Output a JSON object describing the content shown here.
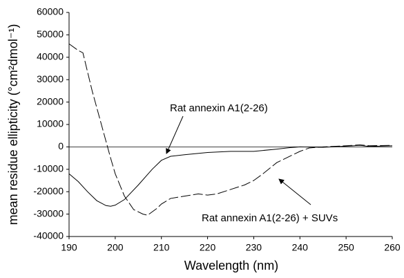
{
  "chart_data": {
    "type": "line",
    "x_label": "Wavelength (nm)",
    "y_label": "mean residue ellipticity (°cm²dmol⁻¹)",
    "xlim": [
      190,
      260
    ],
    "xticks": [
      190,
      200,
      210,
      220,
      230,
      240,
      250,
      260
    ],
    "ylim": [
      -40000,
      60000
    ],
    "yticks": [
      -40000,
      -30000,
      -20000,
      -10000,
      0,
      10000,
      20000,
      30000,
      40000,
      50000,
      60000
    ],
    "zero_line": true,
    "series": [
      {
        "name": "Rat annexin A1(2-26)",
        "color": "#000000",
        "dashed": false,
        "x": [
          190,
          192,
          194,
          196,
          198,
          199,
          200,
          202,
          205,
          208,
          210,
          212,
          215,
          220,
          225,
          230,
          235,
          238,
          240,
          245,
          250,
          253,
          255,
          260
        ],
        "values": [
          -12000,
          -15500,
          -20000,
          -24000,
          -26200,
          -26500,
          -26000,
          -23500,
          -17000,
          -10000,
          -6000,
          -4200,
          -3500,
          -2500,
          -2000,
          -2000,
          -1000,
          -300,
          0,
          -200,
          300,
          700,
          200,
          500
        ]
      },
      {
        "name": "Rat annexin A1(2-26) + SUVs",
        "color": "#000000",
        "dashed": true,
        "x": [
          190,
          192,
          193,
          195,
          197,
          199,
          200,
          202,
          204,
          206,
          207,
          209,
          210,
          212,
          215,
          218,
          220,
          222,
          225,
          228,
          230,
          232,
          235,
          238,
          240,
          242,
          245,
          250,
          253,
          255,
          260
        ],
        "values": [
          46000,
          43000,
          42000,
          25000,
          10000,
          -5000,
          -12000,
          -22000,
          -28000,
          -30000,
          -30500,
          -27500,
          -25500,
          -23000,
          -22000,
          -21000,
          -21500,
          -21000,
          -19000,
          -17000,
          -15000,
          -12000,
          -7000,
          -4000,
          -2000,
          -500,
          0,
          500,
          900,
          500,
          700
        ]
      }
    ]
  }
}
